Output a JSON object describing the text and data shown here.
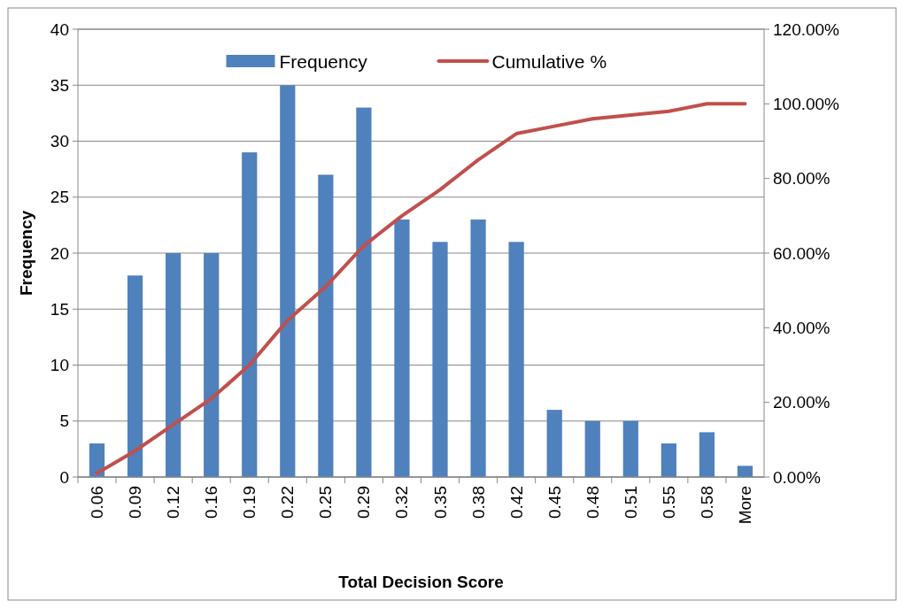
{
  "chart_data": {
    "type": "bar",
    "xlabel": "Total Decision Score",
    "ylabel": "Frequency",
    "categories": [
      "0.06",
      "0.09",
      "0.12",
      "0.16",
      "0.19",
      "0.22",
      "0.25",
      "0.29",
      "0.32",
      "0.35",
      "0.38",
      "0.42",
      "0.45",
      "0.48",
      "0.51",
      "0.55",
      "0.58",
      "More"
    ],
    "series": [
      {
        "name": "Frequency",
        "color": "#4f81bd",
        "values": [
          3,
          18,
          20,
          20,
          29,
          35,
          27,
          33,
          23,
          21,
          23,
          21,
          6,
          5,
          5,
          3,
          4,
          1
        ]
      },
      {
        "name": "Cumulative %",
        "type": "line",
        "axis": "y2",
        "color": "#c0504d",
        "values": [
          1,
          7,
          14,
          21,
          30,
          42,
          51,
          62,
          70,
          77,
          85,
          92,
          94,
          96,
          97,
          98,
          100,
          100
        ]
      }
    ],
    "ylim": [
      0,
      40
    ],
    "yticks": [
      0,
      5,
      10,
      15,
      20,
      25,
      30,
      35,
      40
    ],
    "y2lim": [
      0,
      120
    ],
    "y2ticks": [
      {
        "value": 0,
        "label": "0.00%"
      },
      {
        "value": 20,
        "label": "20.00%"
      },
      {
        "value": 40,
        "label": "40.00%"
      },
      {
        "value": 60,
        "label": "60.00%"
      },
      {
        "value": 80,
        "label": "80.00%"
      },
      {
        "value": 100,
        "label": "100.00%"
      },
      {
        "value": 120,
        "label": "120.00%"
      }
    ],
    "grid": "y",
    "legend": "top",
    "marker": "none"
  }
}
